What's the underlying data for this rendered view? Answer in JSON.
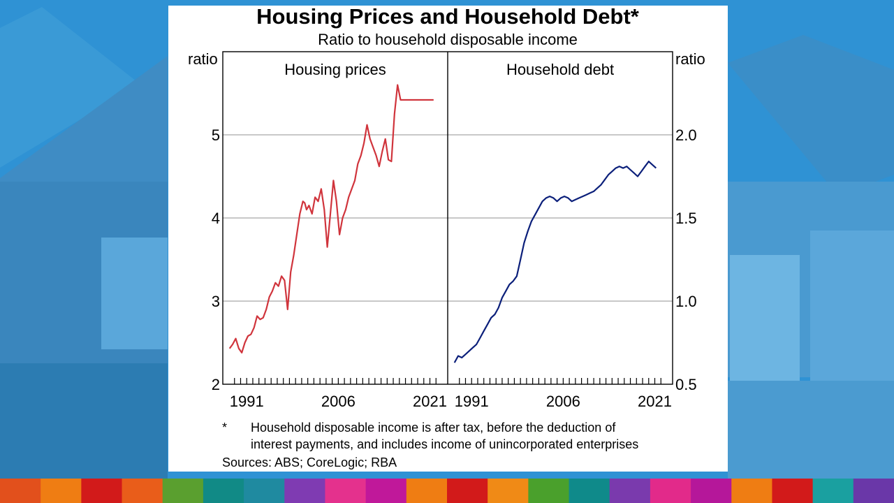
{
  "colors": {
    "background": "#2d8fd1",
    "card": "#ffffff",
    "housing_line": "#d0343c",
    "debt_line": "#0b1f7a",
    "gridline": "#a6a6a6"
  },
  "stripe_colors": [
    "#e2501c",
    "#ef7d13",
    "#d21a1a",
    "#e95d1a",
    "#5a9f2f",
    "#118a86",
    "#1f8aa0",
    "#7f3bb2",
    "#e4318d",
    "#c0189a",
    "#ef7d13",
    "#d21a1a",
    "#f08a16",
    "#4aa02c",
    "#0f8a8a",
    "#7a3aad",
    "#e22a8a",
    "#b5179a",
    "#ef7d13",
    "#d21a1a",
    "#1aa0a0",
    "#6a37a8"
  ],
  "chart": {
    "title": "Housing Prices and Household Debt*",
    "subtitle": "Ratio to household disposable income",
    "left_unit": "ratio",
    "right_unit": "ratio",
    "left_ticks": [
      "2",
      "3",
      "4",
      "5"
    ],
    "right_ticks": [
      "0.5",
      "1.0",
      "1.5",
      "2.0"
    ],
    "x_ticks": [
      "1991",
      "2006",
      "2021"
    ],
    "footnote_marker": "*",
    "footnote_line1": "Household disposable income is after tax, before the deduction of",
    "footnote_line2": "interest payments, and includes income of unincorporated enterprises",
    "sources": "Sources: ABS; CoreLogic; RBA"
  },
  "chart_data": [
    {
      "type": "line",
      "title": "Housing prices",
      "ylabel": "ratio",
      "ylim": [
        2,
        6
      ],
      "xlim": [
        1988,
        2023
      ],
      "yticks": [
        2,
        3,
        4,
        5
      ],
      "xticks": [
        1991,
        2006,
        2021
      ],
      "grid": true,
      "series": [
        {
          "x": [
            1988.2,
            1988.7,
            1989.2,
            1989.7,
            1990.2,
            1990.7,
            1991.2,
            1991.7,
            1992.2,
            1992.7,
            1993.2,
            1993.7,
            1994.2,
            1994.7,
            1995.2,
            1995.7,
            1996.2,
            1996.7,
            1997.2,
            1997.7,
            1998.2,
            1998.7,
            1999.2,
            1999.7,
            2000.2,
            2000.5,
            2000.8,
            2001.2,
            2001.7,
            2002.2,
            2002.7,
            2003.2,
            2003.7,
            2004.2,
            2004.7,
            2005.2,
            2005.7,
            2006.2,
            2006.7,
            2007.2,
            2007.7,
            2008.2,
            2008.7,
            2009.2,
            2009.7,
            2010.2,
            2010.7,
            2011.2,
            2011.7,
            2012.2,
            2012.7,
            2013.2,
            2013.7,
            2014.2,
            2014.7,
            2015.2,
            2015.7,
            2016.2,
            2016.7,
            2017.2,
            2017.7,
            2018.2,
            2018.7,
            2019.2,
            2019.7,
            2020.2,
            2020.6,
            2021.0,
            2021.3,
            2021.6
          ],
          "values": [
            2.43,
            2.48,
            2.55,
            2.43,
            2.38,
            2.5,
            2.58,
            2.6,
            2.68,
            2.82,
            2.78,
            2.8,
            2.9,
            3.05,
            3.12,
            3.22,
            3.18,
            3.3,
            3.25,
            2.9,
            3.35,
            3.55,
            3.8,
            4.05,
            4.2,
            4.18,
            4.1,
            4.15,
            4.05,
            4.25,
            4.2,
            4.35,
            4.1,
            3.65,
            4.05,
            4.45,
            4.2,
            3.8,
            4.0,
            4.1,
            4.25,
            4.35,
            4.45,
            4.65,
            4.75,
            4.9,
            5.12,
            4.95,
            4.85,
            4.75,
            4.62,
            4.8,
            4.95,
            4.7,
            4.68,
            5.25,
            5.6,
            5.42,
            5.42,
            5.42,
            5.42,
            5.42,
            5.42,
            5.42,
            5.42,
            5.42,
            5.42,
            5.42,
            5.42,
            5.42
          ]
        }
      ]
    },
    {
      "type": "line",
      "title": "Household debt",
      "ylabel": "ratio",
      "ylim": [
        0.5,
        2.5
      ],
      "xlim": [
        1988,
        2023
      ],
      "yticks": [
        0.5,
        1.0,
        1.5,
        2.0
      ],
      "xticks": [
        1991,
        2006,
        2021
      ],
      "grid": true,
      "series": [
        {
          "x": [
            1988.2,
            1988.8,
            1989.4,
            1990.0,
            1990.6,
            1991.2,
            1991.8,
            1992.4,
            1993.0,
            1993.6,
            1994.2,
            1994.8,
            1995.4,
            1996.0,
            1996.6,
            1997.2,
            1997.8,
            1998.4,
            1999.0,
            1999.6,
            2000.2,
            2000.8,
            2001.4,
            2002.0,
            2002.6,
            2003.2,
            2003.8,
            2004.4,
            2005.0,
            2005.6,
            2006.2,
            2006.8,
            2007.4,
            2008.0,
            2008.6,
            2009.2,
            2009.8,
            2010.4,
            2011.0,
            2011.6,
            2012.2,
            2012.8,
            2013.4,
            2014.0,
            2014.6,
            2015.2,
            2015.8,
            2016.4,
            2017.0,
            2017.6,
            2018.2,
            2018.8,
            2019.4,
            2020.0,
            2020.6,
            2021.2
          ],
          "values": [
            0.63,
            0.67,
            0.66,
            0.68,
            0.7,
            0.72,
            0.74,
            0.78,
            0.82,
            0.86,
            0.9,
            0.92,
            0.96,
            1.02,
            1.06,
            1.1,
            1.12,
            1.15,
            1.25,
            1.35,
            1.42,
            1.48,
            1.52,
            1.56,
            1.6,
            1.62,
            1.63,
            1.62,
            1.6,
            1.62,
            1.63,
            1.62,
            1.6,
            1.61,
            1.62,
            1.63,
            1.64,
            1.65,
            1.66,
            1.68,
            1.7,
            1.73,
            1.76,
            1.78,
            1.8,
            1.81,
            1.8,
            1.81,
            1.79,
            1.77,
            1.75,
            1.78,
            1.81,
            1.84,
            1.82,
            1.8
          ]
        }
      ]
    }
  ]
}
